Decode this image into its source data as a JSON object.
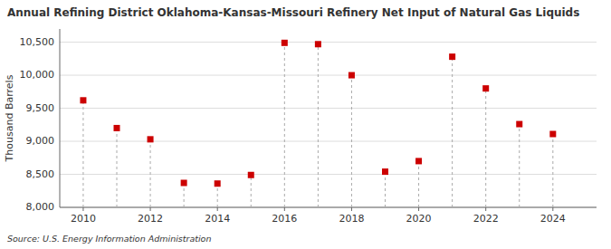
{
  "chart_data": {
    "type": "scatter",
    "title": "Annual Refining District Oklahoma-Kansas-Missouri Refinery Net Input of Natural Gas Liquids",
    "ylabel": "Thousand Barrels",
    "annotations": [
      "Source: U.S. Energy Information Administration"
    ],
    "x": [
      2010,
      2011,
      2012,
      2013,
      2014,
      2015,
      2016,
      2017,
      2018,
      2019,
      2020,
      2021,
      2022,
      2023,
      2024
    ],
    "values": [
      9620,
      9200,
      9030,
      8370,
      8360,
      8490,
      10490,
      10470,
      10000,
      8540,
      8700,
      10280,
      9800,
      9260,
      9110
    ],
    "color": "#cc0000",
    "marker": "square",
    "xlim": [
      2009.3,
      2025.3
    ],
    "ylim": [
      8000,
      10700
    ],
    "xticks": [
      2010,
      2012,
      2014,
      2016,
      2018,
      2020,
      2022,
      2024
    ],
    "yticks": [
      {
        "value": 8000,
        "label": "8,000"
      },
      {
        "value": 8500,
        "label": "8,500"
      },
      {
        "value": 9000,
        "label": "9,000"
      },
      {
        "value": 9500,
        "label": "9,500"
      },
      {
        "value": 10000,
        "label": "10,000"
      },
      {
        "value": 10500,
        "label": "10,500"
      }
    ],
    "grid": true
  }
}
